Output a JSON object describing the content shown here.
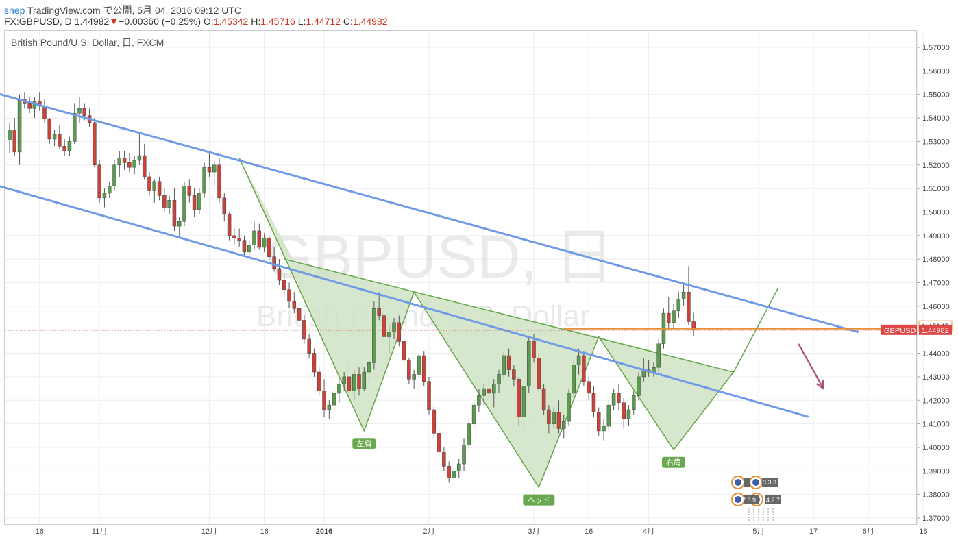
{
  "header": {
    "user": "snep",
    "published": "TradingView.com で公開, 5月 04, 2016 09:12 UTC",
    "symbol": "FX:GBPUSD, D",
    "last": "1.44982",
    "change_arrow": "▼",
    "change": "−0.00360 (−0.25%)",
    "o_label": "O:",
    "o_val": "1.45342",
    "h_label": "H:",
    "h_val": "1.45716",
    "l_label": "L:",
    "l_val": "1.44712",
    "c_label": "C:",
    "c_val": "1.44982"
  },
  "legend": "British Pound/U.S. Dollar, 日, FXCM",
  "watermark": {
    "line1": "GBPUSD, 日",
    "line2": "British Pound/U.S. Dollar"
  },
  "price_labels": {
    "level": "1.45145",
    "symbol_tag": "GBPUSD",
    "last": "1.44982"
  },
  "pattern_labels": {
    "left_shoulder": "左肩",
    "head": "ヘッド",
    "right_shoulder": "右肩"
  },
  "events": {
    "count_a": "3 3 3",
    "count_b": "7 3 9",
    "count_c": "4 2 7"
  },
  "colors": {
    "up": "#5b9a4f",
    "down": "#c9433a",
    "channel": "#6f9be6",
    "pattern_line": "#6aa84f",
    "pattern_fill": "#cfe3c6",
    "resistance": "#e69138",
    "arrow": "#a64d79",
    "last_price": "#e04646"
  },
  "chart_data": {
    "type": "candlestick",
    "title": "British Pound/U.S. Dollar, 日, FXCM",
    "symbol": "FX:GBPUSD",
    "timeframe": "D",
    "ylim": [
      1.365,
      1.575
    ],
    "y_ticks": [
      "1.57000",
      "1.56000",
      "1.55000",
      "1.54000",
      "1.53000",
      "1.52000",
      "1.51000",
      "1.50000",
      "1.49000",
      "1.48000",
      "1.47000",
      "1.46000",
      "1.45000",
      "1.44000",
      "1.43000",
      "1.42000",
      "1.41000",
      "1.40000",
      "1.39000",
      "1.38000",
      "1.37000"
    ],
    "x_ticks": [
      {
        "label": "16",
        "bar": 6
      },
      {
        "label": "11月",
        "bar": 18
      },
      {
        "label": "12月",
        "bar": 40
      },
      {
        "label": "16",
        "bar": 51
      },
      {
        "label": "2016",
        "bar": 63
      },
      {
        "label": "2月",
        "bar": 84
      },
      {
        "label": "3月",
        "bar": 105
      },
      {
        "label": "16",
        "bar": 116
      },
      {
        "label": "4月",
        "bar": 128
      },
      {
        "label": "5月",
        "bar": 150
      },
      {
        "label": "17",
        "bar": 161
      },
      {
        "label": "6月",
        "bar": 172
      },
      {
        "label": "16",
        "bar": 183
      }
    ],
    "candles": [
      [
        1.5305,
        1.538,
        1.525,
        1.535
      ],
      [
        1.535,
        1.54,
        1.524,
        1.5255
      ],
      [
        1.5255,
        1.55,
        1.52,
        1.548
      ],
      [
        1.548,
        1.551,
        1.544,
        1.546
      ],
      [
        1.546,
        1.549,
        1.542,
        1.544
      ],
      [
        1.544,
        1.549,
        1.54,
        1.547
      ],
      [
        1.547,
        1.551,
        1.543,
        1.545
      ],
      [
        1.545,
        1.548,
        1.538,
        1.5395
      ],
      [
        1.5395,
        1.54,
        1.529,
        1.531
      ],
      [
        1.531,
        1.535,
        1.528,
        1.533
      ],
      [
        1.533,
        1.537,
        1.527,
        1.528
      ],
      [
        1.528,
        1.531,
        1.524,
        1.526
      ],
      [
        1.526,
        1.532,
        1.524,
        1.53
      ],
      [
        1.53,
        1.546,
        1.529,
        1.542
      ],
      [
        1.542,
        1.549,
        1.538,
        1.544
      ],
      [
        1.544,
        1.546,
        1.539,
        1.541
      ],
      [
        1.541,
        1.544,
        1.536,
        1.538
      ],
      [
        1.538,
        1.54,
        1.519,
        1.52
      ],
      [
        1.52,
        1.522,
        1.504,
        1.506
      ],
      [
        1.506,
        1.51,
        1.502,
        1.508
      ],
      [
        1.508,
        1.513,
        1.506,
        1.511
      ],
      [
        1.511,
        1.522,
        1.509,
        1.52
      ],
      [
        1.52,
        1.526,
        1.515,
        1.523
      ],
      [
        1.523,
        1.526,
        1.518,
        1.521
      ],
      [
        1.521,
        1.525,
        1.517,
        1.519
      ],
      [
        1.519,
        1.524,
        1.516,
        1.522
      ],
      [
        1.522,
        1.533,
        1.52,
        1.524
      ],
      [
        1.524,
        1.529,
        1.514,
        1.515
      ],
      [
        1.515,
        1.517,
        1.507,
        1.509
      ],
      [
        1.509,
        1.514,
        1.504,
        1.513
      ],
      [
        1.513,
        1.515,
        1.505,
        1.507
      ],
      [
        1.507,
        1.51,
        1.5,
        1.502
      ],
      [
        1.502,
        1.507,
        1.499,
        1.505
      ],
      [
        1.505,
        1.51,
        1.492,
        1.494
      ],
      [
        1.494,
        1.498,
        1.49,
        1.496
      ],
      [
        1.496,
        1.513,
        1.494,
        1.511
      ],
      [
        1.511,
        1.514,
        1.504,
        1.507
      ],
      [
        1.507,
        1.51,
        1.498,
        1.501
      ],
      [
        1.501,
        1.51,
        1.499,
        1.508
      ],
      [
        1.508,
        1.521,
        1.506,
        1.519
      ],
      [
        1.519,
        1.526,
        1.515,
        1.517
      ],
      [
        1.517,
        1.522,
        1.511,
        1.52
      ],
      [
        1.52,
        1.523,
        1.504,
        1.506
      ],
      [
        1.506,
        1.508,
        1.496,
        1.499
      ],
      [
        1.499,
        1.5,
        1.488,
        1.49
      ],
      [
        1.49,
        1.493,
        1.486,
        1.489
      ],
      [
        1.489,
        1.493,
        1.485,
        1.488
      ],
      [
        1.488,
        1.49,
        1.481,
        1.483
      ],
      [
        1.483,
        1.488,
        1.481,
        1.486
      ],
      [
        1.486,
        1.496,
        1.484,
        1.492
      ],
      [
        1.492,
        1.495,
        1.484,
        1.485
      ],
      [
        1.485,
        1.491,
        1.483,
        1.489
      ],
      [
        1.489,
        1.49,
        1.48,
        1.481
      ],
      [
        1.481,
        1.485,
        1.475,
        1.476
      ],
      [
        1.476,
        1.48,
        1.469,
        1.471
      ],
      [
        1.471,
        1.474,
        1.465,
        1.467
      ],
      [
        1.467,
        1.47,
        1.459,
        1.462
      ],
      [
        1.462,
        1.466,
        1.457,
        1.459
      ],
      [
        1.459,
        1.462,
        1.452,
        1.454
      ],
      [
        1.454,
        1.456,
        1.444,
        1.446
      ],
      [
        1.446,
        1.448,
        1.438,
        1.44
      ],
      [
        1.44,
        1.442,
        1.43,
        1.432
      ],
      [
        1.432,
        1.434,
        1.422,
        1.424
      ],
      [
        1.424,
        1.429,
        1.413,
        1.416
      ],
      [
        1.416,
        1.42,
        1.412,
        1.418
      ],
      [
        1.418,
        1.425,
        1.416,
        1.423
      ],
      [
        1.423,
        1.429,
        1.419,
        1.427
      ],
      [
        1.427,
        1.432,
        1.424,
        1.43
      ],
      [
        1.43,
        1.436,
        1.422,
        1.424
      ],
      [
        1.424,
        1.433,
        1.42,
        1.431
      ],
      [
        1.431,
        1.434,
        1.422,
        1.425
      ],
      [
        1.425,
        1.434,
        1.424,
        1.432
      ],
      [
        1.432,
        1.438,
        1.428,
        1.436
      ],
      [
        1.436,
        1.462,
        1.433,
        1.459
      ],
      [
        1.459,
        1.466,
        1.454,
        1.456
      ],
      [
        1.456,
        1.46,
        1.444,
        1.447
      ],
      [
        1.447,
        1.452,
        1.44,
        1.449
      ],
      [
        1.449,
        1.455,
        1.446,
        1.453
      ],
      [
        1.453,
        1.456,
        1.443,
        1.445
      ],
      [
        1.445,
        1.448,
        1.435,
        1.437
      ],
      [
        1.437,
        1.438,
        1.427,
        1.429
      ],
      [
        1.429,
        1.433,
        1.425,
        1.431
      ],
      [
        1.431,
        1.442,
        1.429,
        1.439
      ],
      [
        1.439,
        1.441,
        1.426,
        1.428
      ],
      [
        1.428,
        1.43,
        1.414,
        1.416
      ],
      [
        1.416,
        1.418,
        1.404,
        1.406
      ],
      [
        1.406,
        1.408,
        1.396,
        1.398
      ],
      [
        1.398,
        1.4,
        1.39,
        1.392
      ],
      [
        1.392,
        1.394,
        1.385,
        1.387
      ],
      [
        1.387,
        1.392,
        1.384,
        1.39
      ],
      [
        1.39,
        1.395,
        1.387,
        1.393
      ],
      [
        1.393,
        1.404,
        1.39,
        1.401
      ],
      [
        1.401,
        1.412,
        1.399,
        1.41
      ],
      [
        1.41,
        1.42,
        1.408,
        1.418
      ],
      [
        1.418,
        1.425,
        1.415,
        1.422
      ],
      [
        1.422,
        1.427,
        1.418,
        1.425
      ],
      [
        1.425,
        1.43,
        1.42,
        1.423
      ],
      [
        1.423,
        1.429,
        1.417,
        1.427
      ],
      [
        1.427,
        1.433,
        1.423,
        1.431
      ],
      [
        1.431,
        1.441,
        1.429,
        1.439
      ],
      [
        1.439,
        1.442,
        1.43,
        1.433
      ],
      [
        1.433,
        1.435,
        1.426,
        1.429
      ],
      [
        1.429,
        1.43,
        1.409,
        1.413
      ],
      [
        1.413,
        1.428,
        1.405,
        1.426
      ],
      [
        1.426,
        1.447,
        1.423,
        1.445
      ],
      [
        1.445,
        1.448,
        1.436,
        1.438
      ],
      [
        1.438,
        1.44,
        1.423,
        1.425
      ],
      [
        1.425,
        1.427,
        1.414,
        1.416
      ],
      [
        1.416,
        1.418,
        1.406,
        1.41
      ],
      [
        1.41,
        1.417,
        1.408,
        1.415
      ],
      [
        1.415,
        1.42,
        1.406,
        1.408
      ],
      [
        1.408,
        1.414,
        1.404,
        1.411
      ],
      [
        1.411,
        1.425,
        1.409,
        1.423
      ],
      [
        1.423,
        1.437,
        1.421,
        1.435
      ],
      [
        1.435,
        1.442,
        1.431,
        1.439
      ],
      [
        1.439,
        1.441,
        1.426,
        1.428
      ],
      [
        1.428,
        1.43,
        1.42,
        1.423
      ],
      [
        1.423,
        1.426,
        1.413,
        1.415
      ],
      [
        1.415,
        1.417,
        1.405,
        1.407
      ],
      [
        1.407,
        1.412,
        1.403,
        1.409
      ],
      [
        1.409,
        1.42,
        1.407,
        1.418
      ],
      [
        1.418,
        1.425,
        1.416,
        1.423
      ],
      [
        1.423,
        1.427,
        1.416,
        1.419
      ],
      [
        1.419,
        1.421,
        1.408,
        1.412
      ],
      [
        1.412,
        1.418,
        1.409,
        1.416
      ],
      [
        1.416,
        1.424,
        1.414,
        1.422
      ],
      [
        1.422,
        1.432,
        1.42,
        1.43
      ],
      [
        1.43,
        1.438,
        1.428,
        1.433
      ],
      [
        1.433,
        1.437,
        1.43,
        1.432
      ],
      [
        1.432,
        1.436,
        1.43,
        1.434
      ],
      [
        1.434,
        1.446,
        1.432,
        1.444
      ],
      [
        1.444,
        1.459,
        1.442,
        1.457
      ],
      [
        1.457,
        1.464,
        1.45,
        1.453
      ],
      [
        1.453,
        1.461,
        1.45,
        1.458
      ],
      [
        1.458,
        1.466,
        1.455,
        1.463
      ],
      [
        1.463,
        1.47,
        1.46,
        1.466
      ],
      [
        1.466,
        1.477,
        1.452,
        1.4534
      ],
      [
        1.4534,
        1.4572,
        1.4471,
        1.4498
      ]
    ],
    "drawings": {
      "channel_upper": [
        [
          -12,
          1.556
        ],
        [
          170,
          1.449
        ]
      ],
      "channel_lower": [
        [
          -12,
          1.517
        ],
        [
          160,
          1.413
        ]
      ],
      "resistance": [
        [
          111,
          1.4505
        ],
        [
          195,
          1.4505
        ]
      ],
      "pattern_points": [
        [
          46,
          1.523
        ],
        [
          71,
          1.407
        ],
        [
          81,
          1.466
        ],
        [
          106,
          1.383
        ],
        [
          118,
          1.447
        ],
        [
          133,
          1.399
        ],
        [
          145,
          1.432
        ],
        [
          154,
          1.468
        ]
      ],
      "neckline": [
        [
          55,
          1.48
        ],
        [
          145,
          1.432
        ]
      ],
      "forecast_arrow": [
        [
          158,
          1.444
        ],
        [
          163,
          1.425
        ]
      ]
    }
  }
}
